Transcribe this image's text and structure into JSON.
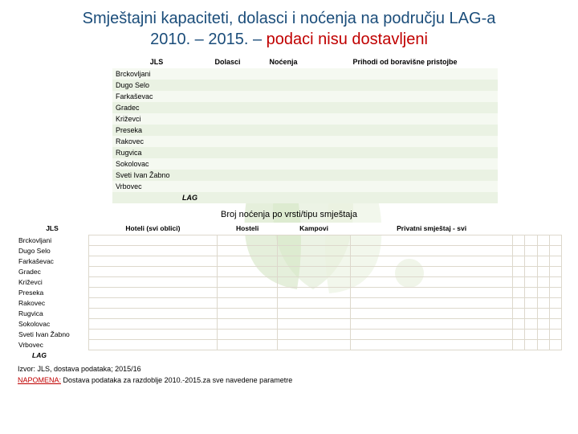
{
  "title_line1": "Smještajni kapaciteti, dolasci i noćenja na području LAG-a",
  "title_line2a": "2010. – 2015. – ",
  "title_line2b": "podaci nisu dostavljeni",
  "table1": {
    "headers": [
      "JLS",
      "Dolasci",
      "Noćenja",
      "Prihodi od boravišne pristojbe"
    ],
    "rows": [
      "Brckovljani",
      "Dugo Selo",
      "Farkaševac",
      "Gradec",
      "Križevci",
      "Preseka",
      "Rakovec",
      "Rugvica",
      "Sokolovac",
      "Sveti Ivan Žabno",
      "Vrbovec"
    ],
    "lag": "LAG"
  },
  "section_title": "Broj noćenja po vrsti/tipu smještaja",
  "table2": {
    "headers": [
      "JLS",
      "Hoteli (svi oblici)",
      "Hosteli",
      "Kampovi",
      "Privatni smještaj - svi"
    ],
    "rows": [
      "Brckovljani",
      "Dugo Selo",
      "Farkaševac",
      "Gradec",
      "Križevci",
      "Preseka",
      "Rakovec",
      "Rugvica",
      "Sokolovac",
      "Sveti Ivan Žabno",
      "Vrbovec"
    ],
    "lag": "LAG"
  },
  "source": "Izvor: JLS, dostava podataka; 2015/16",
  "note_label": "NAPOMENA:",
  "note_text": " Dostava podataka za razdoblje 2010.-2015.za sve navedene parametre"
}
